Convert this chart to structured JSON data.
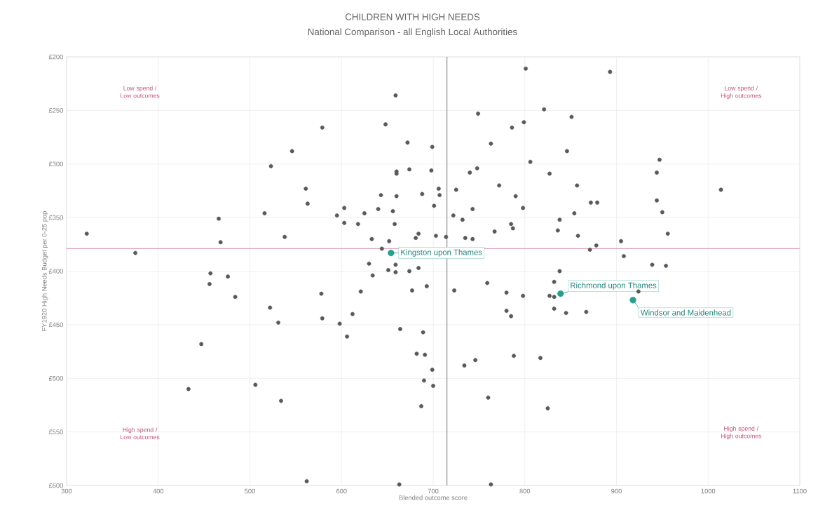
{
  "chart_data": {
    "type": "scatter",
    "title": "CHILDREN WITH HIGH NEEDS",
    "subtitle": "National Comparison - all English Local Authorities",
    "xlabel": "Blended outcome score",
    "ylabel": "FY1920 High Needs Budget per 0-25 pop",
    "xlim": [
      300,
      1100
    ],
    "xticks": [
      300,
      400,
      500,
      600,
      700,
      800,
      900,
      1000,
      1100
    ],
    "ylim": [
      600,
      200
    ],
    "yticks": [
      {
        "value": 200,
        "label": "£200"
      },
      {
        "value": 250,
        "label": "£250"
      },
      {
        "value": 300,
        "label": "£300"
      },
      {
        "value": 350,
        "label": "£350"
      },
      {
        "value": 400,
        "label": "£400"
      },
      {
        "value": 450,
        "label": "£450"
      },
      {
        "value": 500,
        "label": "£500"
      },
      {
        "value": 550,
        "label": "£550"
      },
      {
        "value": 600,
        "label": "£600"
      }
    ],
    "grid": true,
    "marker": "circle",
    "series": [
      {
        "color": "#595959",
        "x": [
          546,
          523,
          561,
          563,
          516,
          466,
          322,
          538,
          468,
          375,
          579,
          659,
          801,
          821,
          851,
          749,
          799,
          786,
          648,
          672,
          699,
          763,
          846,
          806,
          827,
          660,
          660,
          674,
          698,
          740,
          748,
          857,
          772,
          706,
          707,
          725,
          688,
          643,
          660,
          790,
          701,
          603,
          640,
          656,
          743,
          798,
          854,
          595,
          625,
          722,
          732,
          838,
          603,
          618,
          658,
          785,
          787,
          767,
          836,
          684,
          681,
          703,
          714,
          735,
          743,
          633,
          652,
          644,
          630,
          659,
          651,
          659,
          674,
          684,
          838,
          893,
          947,
          944,
          1014,
          872,
          879,
          944,
          950,
          858,
          956,
          871,
          878,
          905,
          908,
          939,
          954,
          457,
          476,
          456,
          484,
          522,
          531,
          578,
          579,
          598,
          606,
          612,
          621,
          634,
          677,
          693,
          664,
          689,
          682,
          691,
          699,
          690,
          700,
          687,
          447,
          433,
          506,
          534,
          562,
          663,
          759,
          723,
          780,
          798,
          832,
          827,
          832,
          924,
          780,
          785,
          832,
          845,
          867,
          746,
          734,
          788,
          817,
          760,
          825,
          763
        ],
        "values": [
          288,
          302,
          323,
          337,
          346,
          351,
          365,
          368,
          373,
          383,
          266,
          236,
          211,
          249,
          256,
          253,
          261,
          266,
          263,
          280,
          284,
          281,
          288,
          298,
          309,
          307,
          309,
          305,
          306,
          308,
          304,
          320,
          320,
          323,
          329,
          324,
          328,
          329,
          330,
          330,
          339,
          341,
          342,
          344,
          342,
          341,
          346,
          348,
          346,
          348,
          352,
          352,
          355,
          356,
          356,
          356,
          360,
          363,
          362,
          365,
          369,
          367,
          368,
          369,
          370,
          370,
          372,
          379,
          393,
          394,
          399,
          401,
          400,
          397,
          400,
          214,
          296,
          308,
          324,
          336,
          336,
          334,
          345,
          367,
          365,
          380,
          376,
          372,
          386,
          394,
          395,
          402,
          405,
          412,
          424,
          434,
          448,
          421,
          444,
          449,
          461,
          440,
          419,
          404,
          418,
          414,
          454,
          457,
          477,
          478,
          492,
          502,
          507,
          526,
          468,
          510,
          506,
          521,
          596,
          599,
          411,
          418,
          420,
          423,
          410,
          423,
          424,
          419,
          437,
          442,
          435,
          439,
          438,
          483,
          488,
          479,
          481,
          518,
          528,
          599
        ]
      },
      {
        "color": "#2a9d8f",
        "x": [
          654,
          839,
          918
        ],
        "values": [
          383,
          421,
          427
        ]
      }
    ],
    "ref_lines": [
      {
        "axis": "x",
        "value": 715,
        "color": "#8c8c8c"
      },
      {
        "axis": "y",
        "value": 379,
        "color": "#d9a3b8"
      }
    ],
    "annotations": [
      {
        "text": "Kingston upon Thames",
        "x": 654,
        "y": 383
      },
      {
        "text": "Richmond upon Thames",
        "x": 839,
        "y": 421
      },
      {
        "text": "Windsor and Maidenhead",
        "x": 918,
        "y": 427
      },
      "Low spend / Low outcomes",
      "Low spend / High outcomes",
      "High spend / Low outcomes",
      "High spend / High outcomes"
    ]
  }
}
